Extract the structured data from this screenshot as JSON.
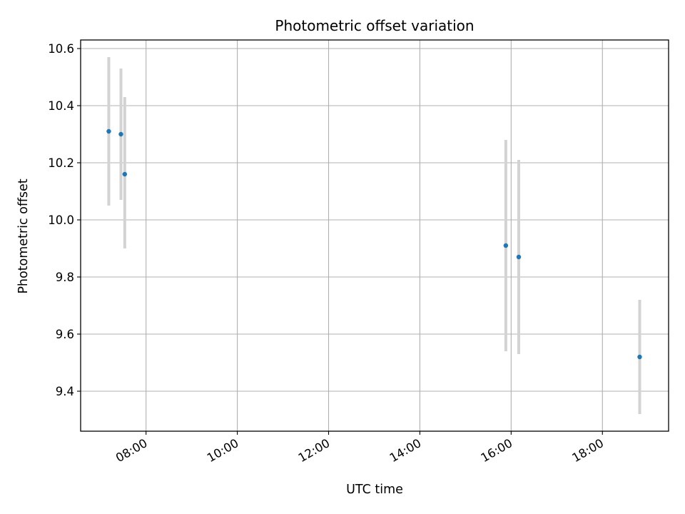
{
  "chart_data": {
    "type": "scatter",
    "title": "Photometric offset variation",
    "xlabel": "UTC time",
    "ylabel": "Photometric offset",
    "x_ticks": [
      "08:00",
      "10:00",
      "12:00",
      "14:00",
      "16:00",
      "18:00"
    ],
    "y_ticks": [
      "9.4",
      "9.6",
      "9.8",
      "10.0",
      "10.2",
      "10.4",
      "10.6"
    ],
    "xlim": [
      "06:34",
      "19:27"
    ],
    "ylim": [
      9.26,
      10.63
    ],
    "grid": true,
    "legend": "none",
    "point_color": "#1f77b4",
    "errorbar_color": "#d3d3d3",
    "points": [
      {
        "x": "07:11",
        "y": 10.31,
        "ylow": 10.05,
        "yhigh": 10.57
      },
      {
        "x": "07:27",
        "y": 10.3,
        "ylow": 10.07,
        "yhigh": 10.53
      },
      {
        "x": "07:32",
        "y": 10.16,
        "ylow": 9.9,
        "yhigh": 10.43
      },
      {
        "x": "15:53",
        "y": 9.91,
        "ylow": 9.54,
        "yhigh": 10.28
      },
      {
        "x": "16:10",
        "y": 9.87,
        "ylow": 9.53,
        "yhigh": 10.21
      },
      {
        "x": "18:49",
        "y": 9.52,
        "ylow": 9.32,
        "yhigh": 9.72
      }
    ]
  }
}
